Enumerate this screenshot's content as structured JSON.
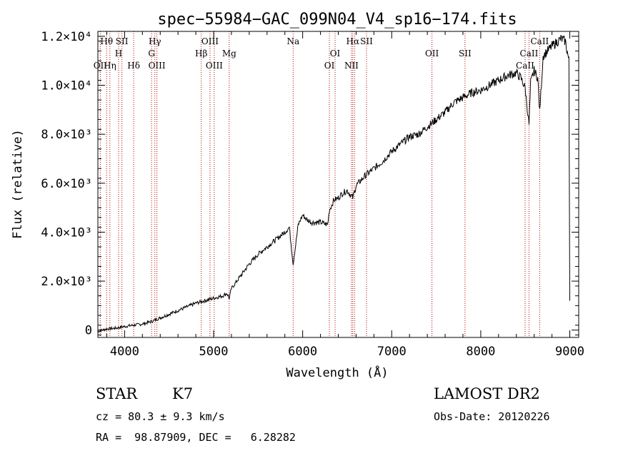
{
  "chart_data": {
    "type": "line",
    "title": "spec−55984−GAC_099N04_V4_sp16−174.fits",
    "xlabel": "Wavelength (Å)",
    "ylabel": "Flux (relative)",
    "xlim": [
      3700,
      9100
    ],
    "ylim": [
      -300,
      12200
    ],
    "xticks": [
      {
        "value": 4000,
        "label": "4000"
      },
      {
        "value": 5000,
        "label": "5000"
      },
      {
        "value": 6000,
        "label": "6000"
      },
      {
        "value": 7000,
        "label": "7000"
      },
      {
        "value": 8000,
        "label": "8000"
      },
      {
        "value": 9000,
        "label": "9000"
      }
    ],
    "yticks": [
      {
        "value": 0,
        "label": "0"
      },
      {
        "value": 2000,
        "label": "2.0×10³"
      },
      {
        "value": 4000,
        "label": "4.0×10³"
      },
      {
        "value": 6000,
        "label": "6.0×10³"
      },
      {
        "value": 8000,
        "label": "8.0×10³"
      },
      {
        "value": 10000,
        "label": "1.0×10⁴"
      },
      {
        "value": 12000,
        "label": "1.2×10⁴"
      }
    ],
    "grid": false,
    "series": [
      {
        "name": "",
        "x": [
          3700,
          3800,
          3900,
          4000,
          4100,
          4200,
          4300,
          4400,
          4500,
          4600,
          4700,
          4800,
          4900,
          5000,
          5100,
          5150,
          5175,
          5200,
          5300,
          5400,
          5500,
          5600,
          5700,
          5800,
          5850,
          5893,
          5950,
          6000,
          6050,
          6100,
          6200,
          6280,
          6300,
          6350,
          6400,
          6450,
          6500,
          6563,
          6600,
          6700,
          6800,
          6900,
          7000,
          7100,
          7200,
          7300,
          7400,
          7500,
          7600,
          7700,
          7800,
          7900,
          8000,
          8100,
          8200,
          8300,
          8400,
          8450,
          8498,
          8542,
          8560,
          8600,
          8640,
          8662,
          8700,
          8800,
          8900,
          8950,
          8990,
          9000
        ],
        "y": [
          -50,
          50,
          80,
          150,
          200,
          250,
          350,
          500,
          650,
          800,
          950,
          1100,
          1200,
          1300,
          1400,
          1500,
          1300,
          1700,
          2200,
          2700,
          3100,
          3400,
          3700,
          4000,
          4200,
          2700,
          4300,
          4700,
          4500,
          4400,
          4400,
          4300,
          4900,
          5300,
          5400,
          5600,
          5700,
          5400,
          5900,
          6300,
          6600,
          6900,
          7300,
          7600,
          7900,
          8000,
          8300,
          8600,
          8900,
          9300,
          9500,
          9700,
          9800,
          10000,
          10200,
          10400,
          10500,
          10300,
          9900,
          8400,
          10100,
          10600,
          10300,
          8900,
          11200,
          11600,
          11900,
          11800,
          11000,
          1200
        ]
      }
    ],
    "lines": [
      {
        "wave": 3798,
        "label": "Hθ",
        "row": 1
      },
      {
        "wave": 3727,
        "label": "OII",
        "row": 3
      },
      {
        "wave": 3835,
        "label": "Hη",
        "row": 3
      },
      {
        "wave": 3933,
        "label": "H",
        "row": 2
      },
      {
        "wave": 3970,
        "label": "SII",
        "row": 1
      },
      {
        "wave": 4102,
        "label": "Hδ",
        "row": 3
      },
      {
        "wave": 4303,
        "label": "G",
        "row": 2
      },
      {
        "wave": 4340,
        "label": "Hγ",
        "row": 1
      },
      {
        "wave": 4363,
        "label": "OIII",
        "row": 3
      },
      {
        "wave": 4861,
        "label": "Hβ",
        "row": 2
      },
      {
        "wave": 4959,
        "label": "OIII",
        "row": 1
      },
      {
        "wave": 5007,
        "label": "OIII",
        "row": 3
      },
      {
        "wave": 5175,
        "label": "Mg",
        "row": 2
      },
      {
        "wave": 5893,
        "label": "Na",
        "row": 1
      },
      {
        "wave": 6300,
        "label": "OI",
        "row": 3
      },
      {
        "wave": 6364,
        "label": "OI",
        "row": 2
      },
      {
        "wave": 6548,
        "label": "NII",
        "row": 3
      },
      {
        "wave": 6563,
        "label": "Hα",
        "row": 1
      },
      {
        "wave": 6583,
        "label": "",
        "row": 0
      },
      {
        "wave": 6717,
        "label": "SII",
        "row": 1
      },
      {
        "wave": 7452,
        "label": "OII",
        "row": 2
      },
      {
        "wave": 7823,
        "label": "SII",
        "row": 2
      },
      {
        "wave": 8498,
        "label": "CaII",
        "row": 3
      },
      {
        "wave": 8542,
        "label": "CaII",
        "row": 2
      },
      {
        "wave": 8662,
        "label": "CaII",
        "row": 1
      }
    ]
  },
  "info": {
    "class": "STAR",
    "subclass": "K7",
    "survey": "LAMOST DR2",
    "cz": "cz = 80.3 ± 9.3 km/s",
    "obs_date": "Obs-Date: 20120226",
    "radec": "RA =  98.87909, DEC =   6.28282"
  }
}
